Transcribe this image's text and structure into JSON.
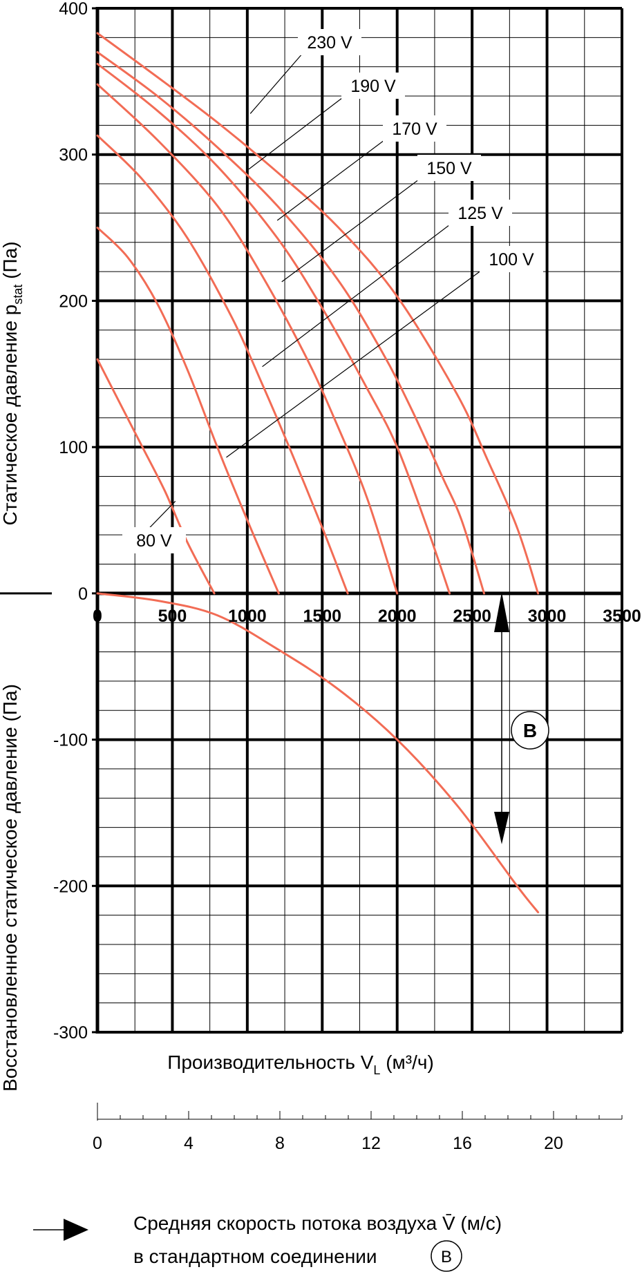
{
  "chart_data": {
    "type": "line",
    "xlabel": "Производительность V",
    "xlabel_sub": "L",
    "xlabel_unit": " (м³/ч)",
    "ylabel_top_main": "Статическое давление p",
    "ylabel_top_sub": "stat",
    "ylabel_top_unit": " (Па)",
    "ylabel_bottom": "Восстановленное статическое давление (Па)",
    "xlim": [
      0,
      3500
    ],
    "ylim": [
      -300,
      400
    ],
    "x_ticks": [
      "0",
      "500",
      "1000",
      "1500",
      "2000",
      "2500",
      "3000",
      "3500"
    ],
    "y_ticks": [
      "400",
      "300",
      "200",
      "100",
      "0",
      "-100",
      "-200",
      "-300"
    ],
    "grid": true,
    "series": [
      {
        "name": "230 V",
        "x": [
          0,
          400,
          800,
          1200,
          1600,
          2000,
          2400,
          2600,
          2800,
          2940
        ],
        "y": [
          383,
          353,
          322,
          288,
          251,
          203,
          136,
          92,
          45,
          0
        ]
      },
      {
        "name": "190 V",
        "x": [
          0,
          400,
          800,
          1200,
          1600,
          1900,
          2100,
          2300,
          2430,
          2580
        ],
        "y": [
          370,
          340,
          305,
          265,
          215,
          165,
          125,
          80,
          50,
          0
        ]
      },
      {
        "name": "170 V",
        "x": [
          0,
          400,
          800,
          1200,
          1500,
          1800,
          2000,
          2200,
          2350
        ],
        "y": [
          362,
          330,
          292,
          243,
          195,
          140,
          100,
          45,
          0
        ]
      },
      {
        "name": "150 V",
        "x": [
          0,
          400,
          800,
          1100,
          1400,
          1600,
          1800,
          2000
        ],
        "y": [
          348,
          310,
          265,
          217,
          160,
          115,
          65,
          0
        ]
      },
      {
        "name": "125 V",
        "x": [
          0,
          300,
          600,
          900,
          1100,
          1300,
          1500,
          1670
        ],
        "y": [
          313,
          283,
          243,
          188,
          143,
          95,
          45,
          0
        ]
      },
      {
        "name": "100 V",
        "x": [
          0,
          200,
          400,
          600,
          800,
          1000,
          1210
        ],
        "y": [
          250,
          230,
          198,
          153,
          100,
          50,
          0
        ]
      },
      {
        "name": "80 V",
        "x": [
          0,
          150,
          300,
          450,
          600,
          780
        ],
        "y": [
          160,
          130,
          100,
          70,
          35,
          0
        ]
      }
    ],
    "recovery_curve": {
      "x": [
        0,
        400,
        800,
        1200,
        1600,
        2000,
        2400,
        2800,
        2940
      ],
      "y": [
        0,
        -5,
        -15,
        -38,
        -65,
        -100,
        -145,
        -200,
        -218
      ]
    },
    "velocity_axis": {
      "ticks": [
        "0",
        "4",
        "8",
        "12",
        "16",
        "20"
      ],
      "range": [
        0,
        23
      ]
    },
    "b_marker": {
      "label": "B",
      "x": 2700
    }
  },
  "footer": {
    "line1": "Средняя скорость потока воздуха V̄ (м/с)",
    "line2": "в стандартном соединении",
    "badge": "B"
  }
}
